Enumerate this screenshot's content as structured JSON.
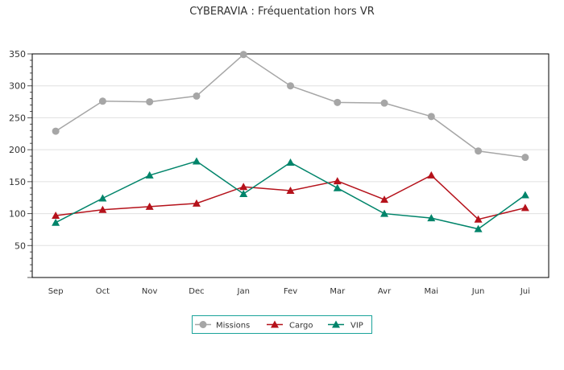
{
  "chart_data": {
    "type": "line",
    "title": "CYBERAVIA : Fréquentation hors VR",
    "xlabel": "",
    "ylabel": "",
    "categories": [
      "Sep",
      "Oct",
      "Nov",
      "Dec",
      "Jan",
      "Fev",
      "Mar",
      "Avr",
      "Mai",
      "Jun",
      "Jui"
    ],
    "ylim": [
      0,
      350
    ],
    "yticks": [
      50,
      100,
      150,
      200,
      250,
      300,
      350
    ],
    "grid": true,
    "legend_position": "bottom-center",
    "series": [
      {
        "name": "Missions",
        "color": "#a6a6a6",
        "marker": "circle",
        "values": [
          229,
          276,
          275,
          284,
          349,
          300,
          274,
          273,
          252,
          198,
          188
        ]
      },
      {
        "name": "Cargo",
        "color": "#b5121b",
        "marker": "triangle",
        "values": [
          97,
          106,
          111,
          116,
          142,
          136,
          151,
          122,
          160,
          91,
          109
        ]
      },
      {
        "name": "VIP",
        "color": "#00846a",
        "marker": "triangle",
        "values": [
          86,
          124,
          160,
          182,
          131,
          180,
          140,
          100,
          93,
          76,
          129
        ]
      }
    ]
  }
}
